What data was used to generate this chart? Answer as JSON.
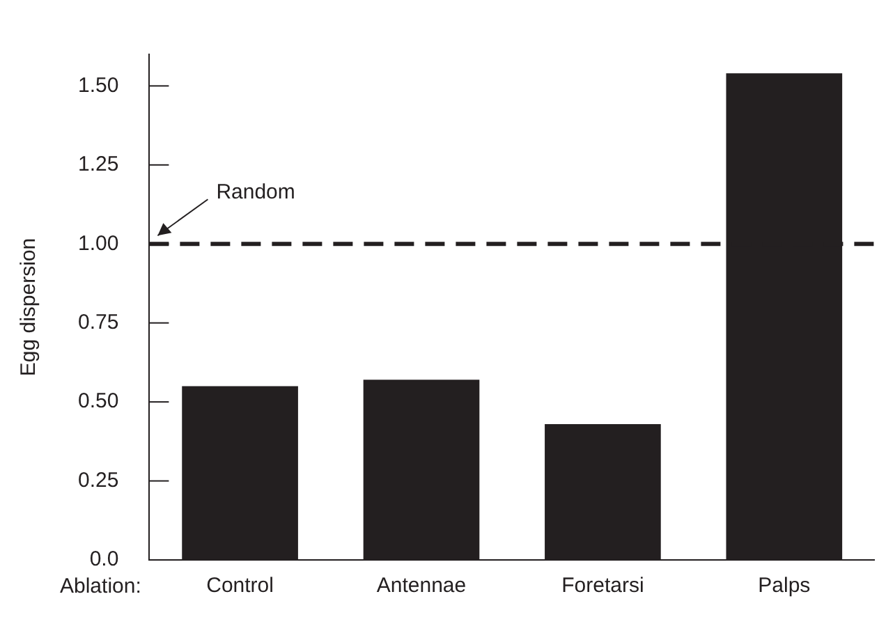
{
  "chart_data": {
    "type": "bar",
    "ylabel": "Egg dispersion",
    "xlabel": "Ablation:",
    "categories": [
      "Control",
      "Antennae",
      "Foretarsi",
      "Palps"
    ],
    "values": [
      0.55,
      0.57,
      0.43,
      1.54
    ],
    "color": "#231f20",
    "ylim": [
      0,
      1.6
    ],
    "yticks": [
      {
        "value": 0,
        "label": "0.0"
      },
      0.25,
      {
        "value": 0.5,
        "label": "0.50"
      },
      0.75,
      {
        "value": 1,
        "label": "1.00"
      },
      1.25,
      {
        "value": 1.5,
        "label": "1.50"
      }
    ],
    "ref_lines": [
      {
        "axis": "y",
        "value": 1,
        "label": "Random",
        "line_style": "dashed",
        "color": "#231f20"
      }
    ],
    "grid": false,
    "legend": false
  }
}
